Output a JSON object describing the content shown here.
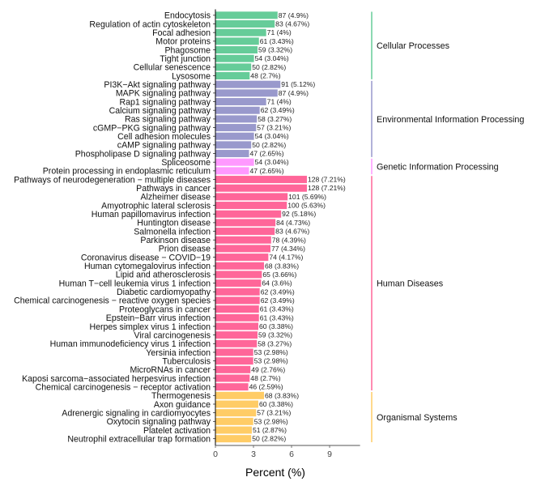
{
  "chart_data": {
    "type": "bar",
    "orientation": "horizontal",
    "xlabel": "Percent (%)",
    "ylabel": "",
    "xlim": [
      0,
      11.4
    ],
    "xticks": [
      0,
      3,
      6,
      9
    ],
    "grid": false,
    "groups": [
      {
        "name": "Cellular Processes",
        "color": "#66CC99",
        "items": [
          {
            "label": "Endocytosis",
            "count": 87,
            "percent": 4.9,
            "text": "87 (4.9%)"
          },
          {
            "label": "Regulation of actin cytoskeleton",
            "count": 83,
            "percent": 4.67,
            "text": "83 (4.67%)"
          },
          {
            "label": "Focal adhesion",
            "count": 71,
            "percent": 4,
            "text": "71 (4%)"
          },
          {
            "label": "Motor proteins",
            "count": 61,
            "percent": 3.43,
            "text": "61 (3.43%)"
          },
          {
            "label": "Phagosome",
            "count": 59,
            "percent": 3.32,
            "text": "59 (3.32%)"
          },
          {
            "label": "Tight junction",
            "count": 54,
            "percent": 3.04,
            "text": "54 (3.04%)"
          },
          {
            "label": "Cellular senescence",
            "count": 50,
            "percent": 2.82,
            "text": "50 (2.82%)"
          },
          {
            "label": "Lysosome",
            "count": 48,
            "percent": 2.7,
            "text": "48 (2.7%)"
          }
        ]
      },
      {
        "name": "Environmental Information Processing",
        "color": "#9999CC",
        "items": [
          {
            "label": "PI3K−Akt signaling pathway",
            "count": 91,
            "percent": 5.12,
            "text": "91 (5.12%)"
          },
          {
            "label": "MAPK signaling pathway",
            "count": 87,
            "percent": 4.9,
            "text": "87 (4.9%)"
          },
          {
            "label": "Rap1 signaling pathway",
            "count": 71,
            "percent": 4,
            "text": "71 (4%)"
          },
          {
            "label": "Calcium signaling pathway",
            "count": 62,
            "percent": 3.49,
            "text": "62 (3.49%)"
          },
          {
            "label": "Ras signaling pathway",
            "count": 58,
            "percent": 3.27,
            "text": "58 (3.27%)"
          },
          {
            "label": "cGMP−PKG signaling pathway",
            "count": 57,
            "percent": 3.21,
            "text": "57 (3.21%)"
          },
          {
            "label": "Cell adhesion molecules",
            "count": 54,
            "percent": 3.04,
            "text": "54 (3.04%)"
          },
          {
            "label": "cAMP signaling pathway",
            "count": 50,
            "percent": 2.82,
            "text": "50 (2.82%)"
          },
          {
            "label": "Phospholipase D signaling pathway",
            "count": 47,
            "percent": 2.65,
            "text": "47 (2.65%)"
          }
        ]
      },
      {
        "name": "Genetic Information Processing",
        "color": "#FF99FF",
        "items": [
          {
            "label": "Spliceosome",
            "count": 54,
            "percent": 3.04,
            "text": "54 (3.04%)"
          },
          {
            "label": "Protein processing in endoplasmic reticulum",
            "count": 47,
            "percent": 2.65,
            "text": "47 (2.65%)"
          }
        ]
      },
      {
        "name": "Human Diseases",
        "color": "#FF6699",
        "items": [
          {
            "label": "Pathways of neurodegeneration − multiple diseases",
            "count": 128,
            "percent": 7.21,
            "text": "128 (7.21%)"
          },
          {
            "label": "Pathways in cancer",
            "count": 128,
            "percent": 7.21,
            "text": "128 (7.21%)"
          },
          {
            "label": "Alzheimer disease",
            "count": 101,
            "percent": 5.69,
            "text": "101 (5.69%)"
          },
          {
            "label": "Amyotrophic lateral sclerosis",
            "count": 100,
            "percent": 5.63,
            "text": "100 (5.63%)"
          },
          {
            "label": "Human papillomavirus infection",
            "count": 92,
            "percent": 5.18,
            "text": "92 (5.18%)"
          },
          {
            "label": "Huntington disease",
            "count": 84,
            "percent": 4.73,
            "text": "84 (4.73%)"
          },
          {
            "label": "Salmonella infection",
            "count": 83,
            "percent": 4.67,
            "text": "83 (4.67%)"
          },
          {
            "label": "Parkinson disease",
            "count": 78,
            "percent": 4.39,
            "text": "78 (4.39%)"
          },
          {
            "label": "Prion disease",
            "count": 77,
            "percent": 4.34,
            "text": "77 (4.34%)"
          },
          {
            "label": "Coronavirus disease − COVID−19",
            "count": 74,
            "percent": 4.17,
            "text": "74 (4.17%)"
          },
          {
            "label": "Human cytomegalovirus infection",
            "count": 68,
            "percent": 3.83,
            "text": "68 (3.83%)"
          },
          {
            "label": "Lipid and atherosclerosis",
            "count": 65,
            "percent": 3.66,
            "text": "65 (3.66%)"
          },
          {
            "label": "Human T−cell leukemia virus 1 infection",
            "count": 64,
            "percent": 3.6,
            "text": "64 (3.6%)"
          },
          {
            "label": "Diabetic cardiomyopathy",
            "count": 62,
            "percent": 3.49,
            "text": "62 (3.49%)"
          },
          {
            "label": "Chemical carcinogenesis − reactive oxygen species",
            "count": 62,
            "percent": 3.49,
            "text": "62 (3.49%)"
          },
          {
            "label": "Proteoglycans in cancer",
            "count": 61,
            "percent": 3.43,
            "text": "61 (3.43%)"
          },
          {
            "label": "Epstein−Barr virus infection",
            "count": 61,
            "percent": 3.43,
            "text": "61 (3.43%)"
          },
          {
            "label": "Herpes simplex virus 1 infection",
            "count": 60,
            "percent": 3.38,
            "text": "60 (3.38%)"
          },
          {
            "label": "Viral carcinogenesis",
            "count": 59,
            "percent": 3.32,
            "text": "59 (3.32%)"
          },
          {
            "label": "Human immunodeficiency virus 1 infection",
            "count": 58,
            "percent": 3.27,
            "text": "58 (3.27%)"
          },
          {
            "label": "Yersinia infection",
            "count": 53,
            "percent": 2.98,
            "text": "53 (2.98%)"
          },
          {
            "label": "Tuberculosis",
            "count": 53,
            "percent": 2.98,
            "text": "53 (2.98%)"
          },
          {
            "label": "MicroRNAs in cancer",
            "count": 49,
            "percent": 2.76,
            "text": "49 (2.76%)"
          },
          {
            "label": "Kaposi sarcoma−associated herpesvirus infection",
            "count": 48,
            "percent": 2.7,
            "text": "48 (2.7%)"
          },
          {
            "label": "Chemical carcinogenesis − receptor activation",
            "count": 46,
            "percent": 2.59,
            "text": "46 (2.59%)"
          }
        ]
      },
      {
        "name": "Organismal Systems",
        "color": "#FFCC66",
        "items": [
          {
            "label": "Thermogenesis",
            "count": 68,
            "percent": 3.83,
            "text": "68 (3.83%)"
          },
          {
            "label": "Axon guidance",
            "count": 60,
            "percent": 3.38,
            "text": "60 (3.38%)"
          },
          {
            "label": "Adrenergic signaling in cardiomyocytes",
            "count": 57,
            "percent": 3.21,
            "text": "57 (3.21%)"
          },
          {
            "label": "Oxytocin signaling pathway",
            "count": 53,
            "percent": 2.98,
            "text": "53 (2.98%)"
          },
          {
            "label": "Platelet activation",
            "count": 51,
            "percent": 2.87,
            "text": "51 (2.87%)"
          },
          {
            "label": "Neutrophil extracellular trap formation",
            "count": 50,
            "percent": 2.82,
            "text": "50 (2.82%)"
          }
        ]
      }
    ]
  }
}
